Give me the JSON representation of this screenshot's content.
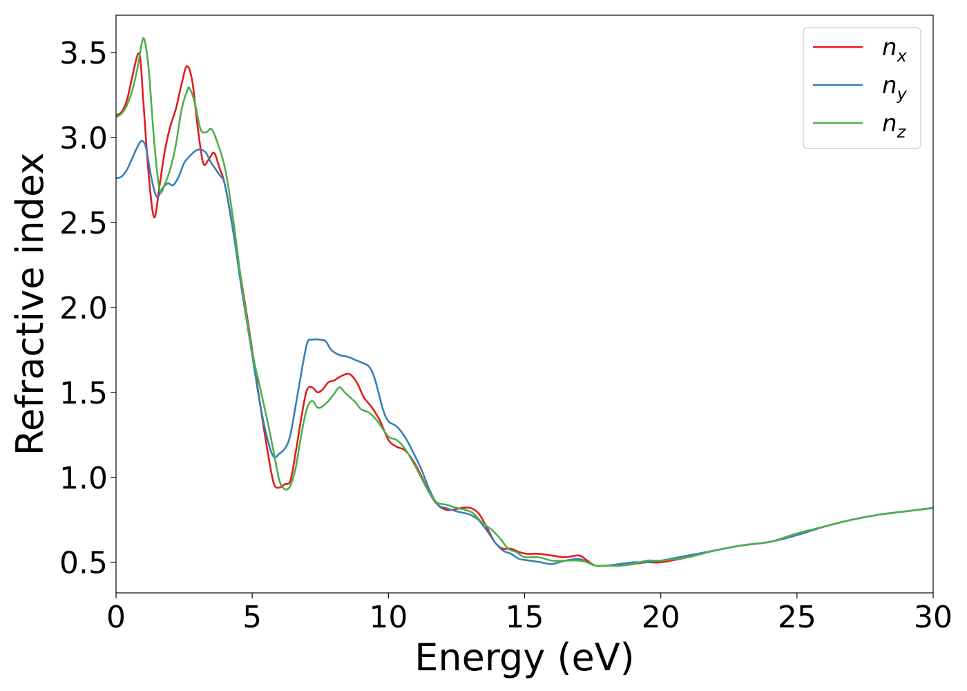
{
  "chart_data": {
    "type": "line",
    "xlabel": "Energy (eV)",
    "ylabel": "Refractive index",
    "xlim": [
      0,
      30
    ],
    "ylim": [
      0.32,
      3.72
    ],
    "xticks": [
      0,
      5,
      10,
      15,
      20,
      25,
      30
    ],
    "xtick_labels": [
      "0",
      "5",
      "10",
      "15",
      "20",
      "25",
      "30"
    ],
    "yticks": [
      0.5,
      1.0,
      1.5,
      2.0,
      2.5,
      3.0,
      3.5
    ],
    "ytick_labels": [
      "0.5",
      "1.0",
      "1.5",
      "2.0",
      "2.5",
      "3.0",
      "3.5"
    ],
    "grid": false,
    "legend_position": "top-right",
    "series": [
      {
        "name": "n_x",
        "label_base": "n",
        "label_sub": "x",
        "color": "#e41a1c",
        "points": [
          [
            0,
            3.13
          ],
          [
            0.2,
            3.15
          ],
          [
            0.4,
            3.22
          ],
          [
            0.6,
            3.36
          ],
          [
            0.8,
            3.49
          ],
          [
            0.9,
            3.45
          ],
          [
            1.0,
            3.22
          ],
          [
            1.2,
            2.78
          ],
          [
            1.4,
            2.53
          ],
          [
            1.6,
            2.72
          ],
          [
            1.8,
            2.93
          ],
          [
            2.0,
            3.07
          ],
          [
            2.2,
            3.17
          ],
          [
            2.4,
            3.31
          ],
          [
            2.6,
            3.42
          ],
          [
            2.8,
            3.33
          ],
          [
            3.0,
            3.06
          ],
          [
            3.2,
            2.85
          ],
          [
            3.4,
            2.87
          ],
          [
            3.6,
            2.91
          ],
          [
            3.8,
            2.82
          ],
          [
            4.0,
            2.72
          ],
          [
            4.3,
            2.45
          ],
          [
            4.6,
            2.16
          ],
          [
            5.0,
            1.75
          ],
          [
            5.3,
            1.42
          ],
          [
            5.6,
            1.12
          ],
          [
            5.8,
            0.96
          ],
          [
            6.0,
            0.94
          ],
          [
            6.2,
            0.96
          ],
          [
            6.4,
            0.98
          ],
          [
            6.6,
            1.15
          ],
          [
            6.8,
            1.35
          ],
          [
            7.0,
            1.51
          ],
          [
            7.2,
            1.53
          ],
          [
            7.4,
            1.5
          ],
          [
            7.6,
            1.52
          ],
          [
            7.8,
            1.56
          ],
          [
            8.0,
            1.57
          ],
          [
            8.2,
            1.59
          ],
          [
            8.5,
            1.61
          ],
          [
            8.7,
            1.59
          ],
          [
            8.9,
            1.54
          ],
          [
            9.1,
            1.47
          ],
          [
            9.4,
            1.41
          ],
          [
            9.7,
            1.33
          ],
          [
            10.0,
            1.22
          ],
          [
            10.3,
            1.18
          ],
          [
            10.6,
            1.16
          ],
          [
            10.9,
            1.1
          ],
          [
            11.2,
            1.01
          ],
          [
            11.5,
            0.91
          ],
          [
            11.8,
            0.84
          ],
          [
            12.1,
            0.81
          ],
          [
            12.4,
            0.81
          ],
          [
            12.7,
            0.82
          ],
          [
            13.0,
            0.82
          ],
          [
            13.3,
            0.79
          ],
          [
            13.6,
            0.71
          ],
          [
            13.9,
            0.62
          ],
          [
            14.2,
            0.58
          ],
          [
            14.5,
            0.58
          ],
          [
            14.8,
            0.56
          ],
          [
            15.1,
            0.55
          ],
          [
            15.5,
            0.55
          ],
          [
            16.0,
            0.54
          ],
          [
            16.5,
            0.53
          ],
          [
            17.0,
            0.54
          ],
          [
            17.3,
            0.51
          ],
          [
            17.6,
            0.48
          ],
          [
            18.0,
            0.48
          ],
          [
            18.5,
            0.48
          ],
          [
            19.0,
            0.49
          ],
          [
            19.5,
            0.5
          ],
          [
            20.0,
            0.5
          ],
          [
            21.0,
            0.53
          ],
          [
            22.0,
            0.57
          ],
          [
            23.0,
            0.6
          ],
          [
            24.0,
            0.62
          ],
          [
            25.0,
            0.66
          ],
          [
            26.0,
            0.71
          ],
          [
            27.0,
            0.75
          ],
          [
            28.0,
            0.78
          ],
          [
            29.0,
            0.8
          ],
          [
            30.0,
            0.82
          ]
        ]
      },
      {
        "name": "n_y",
        "label_base": "n",
        "label_sub": "y",
        "color": "#377eb8",
        "points": [
          [
            0,
            2.76
          ],
          [
            0.2,
            2.77
          ],
          [
            0.4,
            2.81
          ],
          [
            0.6,
            2.88
          ],
          [
            0.8,
            2.95
          ],
          [
            0.95,
            2.98
          ],
          [
            1.1,
            2.94
          ],
          [
            1.3,
            2.76
          ],
          [
            1.5,
            2.65
          ],
          [
            1.7,
            2.7
          ],
          [
            1.9,
            2.73
          ],
          [
            2.1,
            2.72
          ],
          [
            2.3,
            2.77
          ],
          [
            2.5,
            2.85
          ],
          [
            2.7,
            2.89
          ],
          [
            2.9,
            2.92
          ],
          [
            3.1,
            2.93
          ],
          [
            3.3,
            2.91
          ],
          [
            3.5,
            2.85
          ],
          [
            3.8,
            2.78
          ],
          [
            4.0,
            2.72
          ],
          [
            4.3,
            2.45
          ],
          [
            4.6,
            2.12
          ],
          [
            5.0,
            1.72
          ],
          [
            5.3,
            1.42
          ],
          [
            5.6,
            1.2
          ],
          [
            5.8,
            1.12
          ],
          [
            6.0,
            1.14
          ],
          [
            6.2,
            1.17
          ],
          [
            6.4,
            1.25
          ],
          [
            6.7,
            1.52
          ],
          [
            7.0,
            1.78
          ],
          [
            7.2,
            1.81
          ],
          [
            7.5,
            1.81
          ],
          [
            7.7,
            1.8
          ],
          [
            7.9,
            1.75
          ],
          [
            8.2,
            1.72
          ],
          [
            8.5,
            1.71
          ],
          [
            8.8,
            1.69
          ],
          [
            9.1,
            1.67
          ],
          [
            9.3,
            1.65
          ],
          [
            9.5,
            1.58
          ],
          [
            9.8,
            1.4
          ],
          [
            10.0,
            1.33
          ],
          [
            10.3,
            1.3
          ],
          [
            10.6,
            1.24
          ],
          [
            10.9,
            1.15
          ],
          [
            11.2,
            1.05
          ],
          [
            11.5,
            0.93
          ],
          [
            11.8,
            0.84
          ],
          [
            12.1,
            0.82
          ],
          [
            12.5,
            0.8
          ],
          [
            13.0,
            0.78
          ],
          [
            13.3,
            0.75
          ],
          [
            13.6,
            0.69
          ],
          [
            13.9,
            0.62
          ],
          [
            14.2,
            0.57
          ],
          [
            14.5,
            0.55
          ],
          [
            14.8,
            0.52
          ],
          [
            15.2,
            0.51
          ],
          [
            15.6,
            0.5
          ],
          [
            16.0,
            0.49
          ],
          [
            16.5,
            0.51
          ],
          [
            17.0,
            0.52
          ],
          [
            17.3,
            0.5
          ],
          [
            17.6,
            0.48
          ],
          [
            18.0,
            0.48
          ],
          [
            18.5,
            0.49
          ],
          [
            19.0,
            0.5
          ],
          [
            19.5,
            0.5
          ],
          [
            20.0,
            0.51
          ],
          [
            21.0,
            0.54
          ],
          [
            22.0,
            0.57
          ],
          [
            23.0,
            0.6
          ],
          [
            24.0,
            0.62
          ],
          [
            25.0,
            0.66
          ],
          [
            26.0,
            0.71
          ],
          [
            27.0,
            0.75
          ],
          [
            28.0,
            0.78
          ],
          [
            29.0,
            0.8
          ],
          [
            30.0,
            0.82
          ]
        ]
      },
      {
        "name": "n_z",
        "label_base": "n",
        "label_sub": "z",
        "color": "#4daf4a",
        "points": [
          [
            0,
            3.12
          ],
          [
            0.2,
            3.14
          ],
          [
            0.4,
            3.19
          ],
          [
            0.6,
            3.28
          ],
          [
            0.8,
            3.42
          ],
          [
            0.95,
            3.56
          ],
          [
            1.05,
            3.57
          ],
          [
            1.2,
            3.4
          ],
          [
            1.4,
            2.98
          ],
          [
            1.6,
            2.69
          ],
          [
            1.8,
            2.73
          ],
          [
            2.0,
            2.82
          ],
          [
            2.2,
            2.96
          ],
          [
            2.4,
            3.16
          ],
          [
            2.6,
            3.27
          ],
          [
            2.7,
            3.29
          ],
          [
            2.9,
            3.2
          ],
          [
            3.1,
            3.05
          ],
          [
            3.3,
            3.03
          ],
          [
            3.5,
            3.05
          ],
          [
            3.7,
            2.98
          ],
          [
            4.0,
            2.82
          ],
          [
            4.3,
            2.52
          ],
          [
            4.6,
            2.15
          ],
          [
            5.0,
            1.74
          ],
          [
            5.3,
            1.52
          ],
          [
            5.6,
            1.3
          ],
          [
            5.8,
            1.14
          ],
          [
            6.0,
            0.98
          ],
          [
            6.2,
            0.93
          ],
          [
            6.4,
            0.95
          ],
          [
            6.6,
            1.06
          ],
          [
            6.8,
            1.25
          ],
          [
            7.0,
            1.4
          ],
          [
            7.2,
            1.45
          ],
          [
            7.4,
            1.41
          ],
          [
            7.6,
            1.42
          ],
          [
            7.8,
            1.45
          ],
          [
            8.0,
            1.49
          ],
          [
            8.2,
            1.53
          ],
          [
            8.4,
            1.5
          ],
          [
            8.6,
            1.47
          ],
          [
            8.8,
            1.44
          ],
          [
            9.0,
            1.4
          ],
          [
            9.3,
            1.38
          ],
          [
            9.6,
            1.33
          ],
          [
            10.0,
            1.24
          ],
          [
            10.3,
            1.22
          ],
          [
            10.6,
            1.17
          ],
          [
            10.9,
            1.09
          ],
          [
            11.2,
            1.0
          ],
          [
            11.5,
            0.91
          ],
          [
            11.8,
            0.85
          ],
          [
            12.1,
            0.84
          ],
          [
            12.5,
            0.82
          ],
          [
            12.8,
            0.81
          ],
          [
            13.1,
            0.79
          ],
          [
            13.4,
            0.74
          ],
          [
            13.8,
            0.69
          ],
          [
            14.1,
            0.64
          ],
          [
            14.4,
            0.58
          ],
          [
            14.7,
            0.56
          ],
          [
            15.0,
            0.53
          ],
          [
            15.5,
            0.53
          ],
          [
            16.0,
            0.51
          ],
          [
            16.5,
            0.51
          ],
          [
            17.0,
            0.51
          ],
          [
            17.3,
            0.5
          ],
          [
            17.6,
            0.48
          ],
          [
            18.0,
            0.48
          ],
          [
            18.5,
            0.48
          ],
          [
            19.0,
            0.49
          ],
          [
            19.5,
            0.51
          ],
          [
            20.0,
            0.51
          ],
          [
            21.0,
            0.53
          ],
          [
            22.0,
            0.57
          ],
          [
            23.0,
            0.6
          ],
          [
            24.0,
            0.62
          ],
          [
            25.0,
            0.67
          ],
          [
            26.0,
            0.71
          ],
          [
            27.0,
            0.75
          ],
          [
            28.0,
            0.78
          ],
          [
            29.0,
            0.8
          ],
          [
            30.0,
            0.82
          ]
        ]
      }
    ]
  }
}
